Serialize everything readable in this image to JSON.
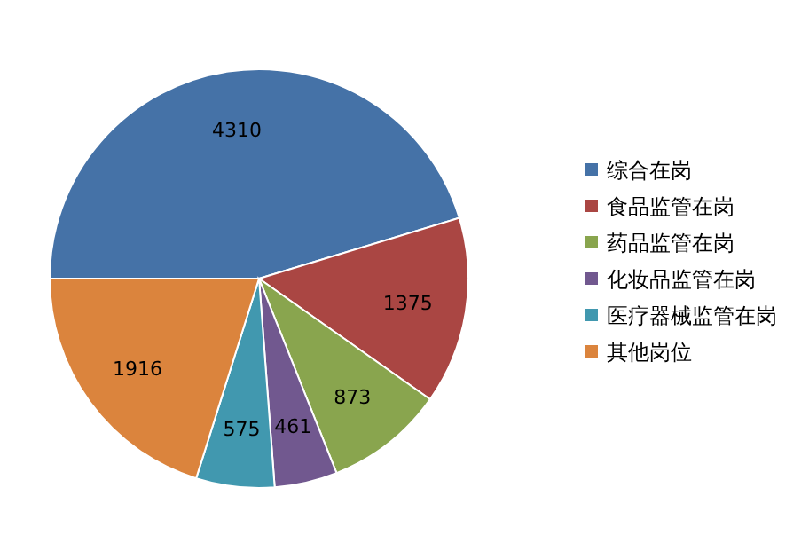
{
  "chart_data": {
    "type": "pie",
    "categories": [
      "综合在岗",
      "食品监管在岗",
      "药品监管在岗",
      "化妆品监管在岗",
      "医疗器械监管在岗",
      "其他岗位"
    ],
    "values": [
      4310,
      1375,
      873,
      461,
      575,
      1916
    ],
    "colors": [
      "#4572a7",
      "#aa4643",
      "#89a54e",
      "#71588f",
      "#4198af",
      "#db843d"
    ],
    "data_labels": true,
    "legend": "right"
  }
}
